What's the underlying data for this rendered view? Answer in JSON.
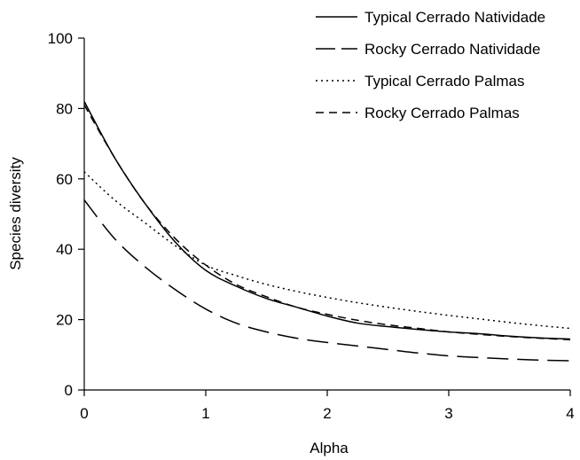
{
  "chart_data": {
    "type": "line",
    "title": "",
    "xlabel": "Alpha",
    "ylabel": "Species diversity",
    "xlim": [
      0,
      4
    ],
    "ylim": [
      0,
      100
    ],
    "xticks": [
      0,
      1,
      2,
      3,
      4
    ],
    "yticks": [
      0,
      20,
      40,
      60,
      80,
      100
    ],
    "grid": false,
    "legend_position": "top-right",
    "x": [
      0,
      0.25,
      0.5,
      0.75,
      1,
      1.25,
      1.5,
      1.75,
      2,
      2.25,
      2.5,
      2.75,
      3,
      3.25,
      3.5,
      3.75,
      4
    ],
    "series": [
      {
        "name": "Typical Cerrado Natividade",
        "dash": "solid",
        "color": "#000000",
        "values": [
          82,
          66,
          53,
          42,
          34,
          29.5,
          26,
          23.5,
          21,
          19,
          18,
          17.2,
          16.5,
          16,
          15.3,
          14.8,
          14.5
        ]
      },
      {
        "name": "Rocky Cerrado Natividade",
        "dash": "long-dash",
        "color": "#000000",
        "values": [
          54,
          43,
          35,
          28.5,
          23,
          19,
          16.5,
          14.7,
          13.5,
          12.5,
          11.5,
          10.5,
          9.7,
          9.2,
          8.8,
          8.5,
          8.3
        ]
      },
      {
        "name": "Typical Cerrado Palmas",
        "dash": "dotted",
        "color": "#000000",
        "values": [
          62,
          54,
          47.5,
          41,
          35.5,
          32.5,
          30,
          28,
          26.3,
          24.8,
          23.5,
          22.3,
          21.2,
          20.2,
          19.2,
          18.3,
          17.5
        ]
      },
      {
        "name": "Rocky Cerrado Palmas",
        "dash": "dash",
        "color": "#000000",
        "values": [
          81,
          66,
          53,
          43,
          35.5,
          30,
          26.5,
          23.5,
          21.5,
          19.8,
          18.5,
          17.5,
          16.5,
          15.8,
          15.2,
          14.7,
          14.3
        ]
      }
    ]
  }
}
